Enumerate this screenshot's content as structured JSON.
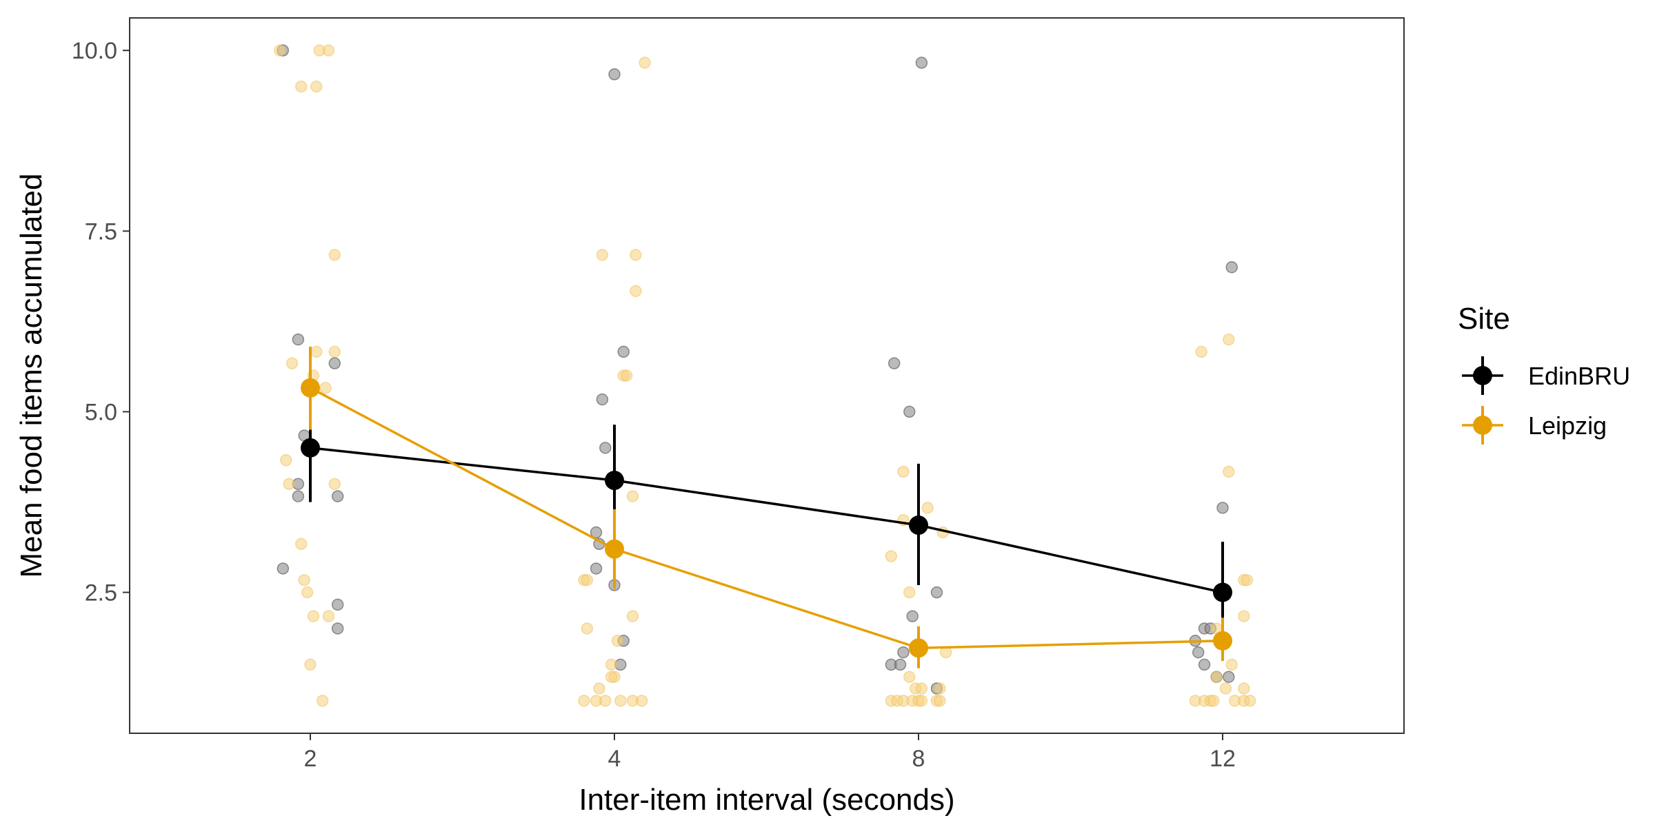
{
  "chart_data": {
    "type": "scatter",
    "xlabel": "Inter-item interval (seconds)",
    "ylabel": "Mean food items accumulated",
    "categories": [
      "2",
      "4",
      "8",
      "12"
    ],
    "y_ticks": [
      "2.5",
      "5.0",
      "7.5",
      "10.0"
    ],
    "y_tick_values": [
      2.5,
      5.0,
      7.5,
      10.0
    ],
    "ylim": [
      0.55,
      10.45
    ],
    "legend_title": "Site",
    "legend_position": "right",
    "grid": false,
    "series": [
      {
        "name": "EdinBRU",
        "color": "#000000",
        "means": [
          4.5,
          4.05,
          3.43,
          2.5
        ],
        "ci_low": [
          3.75,
          3.3,
          2.6,
          1.8
        ],
        "ci_high": [
          5.25,
          4.82,
          4.28,
          3.2
        ],
        "points": [
          [
            [
              -0.09,
              10.0
            ],
            [
              -0.04,
              6.0
            ],
            [
              -0.04,
              4.0
            ],
            [
              -0.02,
              4.67
            ],
            [
              -0.04,
              3.83
            ],
            [
              0.08,
              5.67
            ],
            [
              0.09,
              3.83
            ],
            [
              -0.09,
              2.83
            ],
            [
              0.09,
              2.33
            ],
            [
              0.09,
              2.0
            ]
          ],
          [
            [
              0.0,
              9.67
            ],
            [
              -0.04,
              5.17
            ],
            [
              -0.03,
              4.5
            ],
            [
              0.03,
              5.83
            ],
            [
              -0.06,
              3.33
            ],
            [
              -0.05,
              3.17
            ],
            [
              -0.06,
              2.83
            ],
            [
              0.0,
              2.6
            ],
            [
              0.03,
              1.83
            ],
            [
              0.02,
              1.5
            ]
          ],
          [
            [
              0.01,
              9.83
            ],
            [
              -0.08,
              5.67
            ],
            [
              -0.03,
              5.0
            ],
            [
              0.06,
              2.5
            ],
            [
              -0.02,
              2.17
            ],
            [
              -0.05,
              1.67
            ],
            [
              -0.09,
              1.5
            ],
            [
              -0.06,
              1.5
            ],
            [
              0.06,
              1.17
            ]
          ],
          [
            [
              0.03,
              7.0
            ],
            [
              0.0,
              3.67
            ],
            [
              -0.08,
              1.67
            ],
            [
              -0.09,
              1.83
            ],
            [
              -0.06,
              2.0
            ],
            [
              -0.04,
              2.0
            ],
            [
              -0.06,
              1.5
            ],
            [
              -0.02,
              1.33
            ],
            [
              0.02,
              1.33
            ]
          ]
        ]
      },
      {
        "name": "Leipzig",
        "color": "#E69F00",
        "means": [
          5.33,
          3.1,
          1.73,
          1.83
        ],
        "ci_low": [
          4.75,
          2.55,
          1.45,
          1.55
        ],
        "ci_high": [
          5.9,
          3.65,
          2.03,
          2.15
        ],
        "points": [
          [
            [
              -0.1,
              10.0
            ],
            [
              0.03,
              10.0
            ],
            [
              0.06,
              10.0
            ],
            [
              -0.03,
              9.5
            ],
            [
              0.02,
              9.5
            ],
            [
              0.08,
              7.17
            ],
            [
              -0.06,
              5.67
            ],
            [
              0.02,
              5.83
            ],
            [
              0.08,
              5.83
            ],
            [
              0.01,
              5.5
            ],
            [
              0.05,
              5.33
            ],
            [
              -0.08,
              4.33
            ],
            [
              -0.07,
              4.0
            ],
            [
              0.08,
              4.0
            ],
            [
              -0.03,
              3.17
            ],
            [
              -0.02,
              2.67
            ],
            [
              -0.01,
              2.5
            ],
            [
              0.01,
              2.17
            ],
            [
              0.06,
              2.17
            ],
            [
              0.0,
              1.5
            ],
            [
              0.04,
              1.0
            ]
          ],
          [
            [
              0.1,
              9.83
            ],
            [
              -0.04,
              7.17
            ],
            [
              0.07,
              7.17
            ],
            [
              0.07,
              6.67
            ],
            [
              0.03,
              5.5
            ],
            [
              0.04,
              5.5
            ],
            [
              0.06,
              3.83
            ],
            [
              -0.1,
              2.67
            ],
            [
              -0.09,
              2.67
            ],
            [
              -0.09,
              2.0
            ],
            [
              0.06,
              2.17
            ],
            [
              0.01,
              1.83
            ],
            [
              -0.01,
              1.5
            ],
            [
              0.0,
              1.33
            ],
            [
              -0.01,
              1.33
            ],
            [
              -0.05,
              1.17
            ],
            [
              -0.1,
              1.0
            ],
            [
              -0.06,
              1.0
            ],
            [
              -0.03,
              1.0
            ],
            [
              0.02,
              1.0
            ],
            [
              0.06,
              1.0
            ],
            [
              0.09,
              1.0
            ]
          ],
          [
            [
              -0.05,
              4.17
            ],
            [
              0.03,
              3.67
            ],
            [
              -0.05,
              3.5
            ],
            [
              -0.09,
              3.0
            ],
            [
              0.08,
              3.33
            ],
            [
              -0.03,
              2.5
            ],
            [
              -0.03,
              1.33
            ],
            [
              0.09,
              1.67
            ],
            [
              -0.01,
              1.17
            ],
            [
              0.01,
              1.17
            ],
            [
              0.07,
              1.17
            ],
            [
              -0.09,
              1.0
            ],
            [
              -0.07,
              1.0
            ],
            [
              -0.05,
              1.0
            ],
            [
              -0.02,
              1.0
            ],
            [
              0.0,
              1.0
            ],
            [
              0.01,
              1.0
            ],
            [
              0.06,
              1.0
            ],
            [
              0.07,
              1.0
            ]
          ],
          [
            [
              -0.07,
              5.83
            ],
            [
              0.02,
              6.0
            ],
            [
              0.02,
              4.17
            ],
            [
              0.07,
              2.67
            ],
            [
              0.08,
              2.67
            ],
            [
              0.07,
              2.17
            ],
            [
              -0.02,
              2.0
            ],
            [
              0.03,
              1.5
            ],
            [
              -0.02,
              1.33
            ],
            [
              0.01,
              1.17
            ],
            [
              0.07,
              1.17
            ],
            [
              -0.09,
              1.0
            ],
            [
              -0.06,
              1.0
            ],
            [
              -0.04,
              1.0
            ],
            [
              -0.03,
              1.0
            ],
            [
              0.04,
              1.0
            ],
            [
              0.07,
              1.0
            ],
            [
              0.09,
              1.0
            ]
          ]
        ]
      }
    ]
  }
}
